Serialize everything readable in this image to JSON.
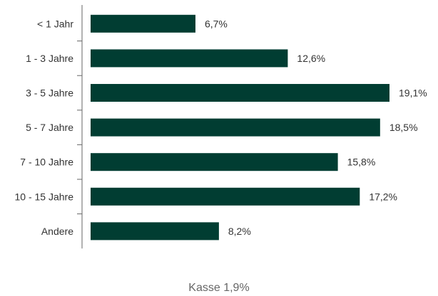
{
  "chart_data": {
    "type": "bar",
    "orientation": "horizontal",
    "categories": [
      "< 1 Jahr",
      "1 - 3 Jahre",
      "3 - 5 Jahre",
      "5 - 7 Jahre",
      "7 - 10 Jahre",
      "10 - 15 Jahre",
      "Andere"
    ],
    "values": [
      6.7,
      12.6,
      19.1,
      18.5,
      15.8,
      17.2,
      8.2
    ],
    "value_labels": [
      "6,7%",
      "12,6%",
      "19,1%",
      "18,5%",
      "15,8%",
      "17,2%",
      "8,2%"
    ],
    "title": "",
    "xlabel": "",
    "ylabel": "",
    "xlim": [
      0,
      19.1
    ],
    "grid": false,
    "bar_color": "#013d32"
  },
  "footnote": "Kasse 1,9%"
}
